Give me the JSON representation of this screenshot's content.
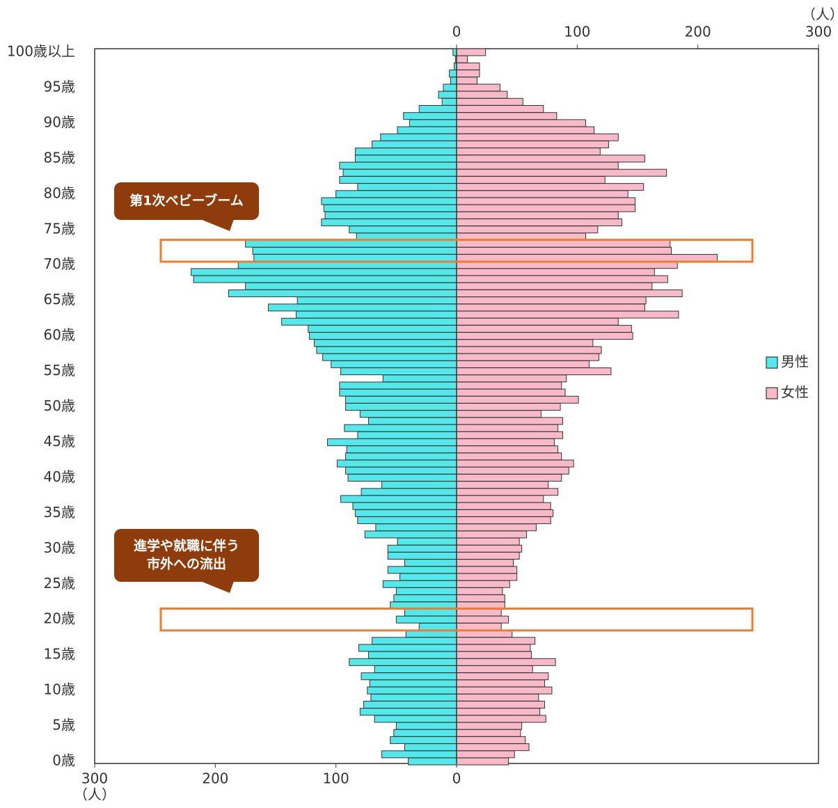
{
  "chart_data": {
    "type": "pyramid",
    "categories": [
      "0歳",
      null,
      null,
      null,
      null,
      "5歳",
      null,
      null,
      null,
      null,
      "10歳",
      null,
      null,
      null,
      null,
      "15歳",
      null,
      null,
      null,
      null,
      "20歳",
      null,
      null,
      null,
      null,
      "25歳",
      null,
      null,
      null,
      null,
      "30歳",
      null,
      null,
      null,
      null,
      "35歳",
      null,
      null,
      null,
      null,
      "40歳",
      null,
      null,
      null,
      null,
      "45歳",
      null,
      null,
      null,
      null,
      "50歳",
      null,
      null,
      null,
      null,
      "55歳",
      null,
      null,
      null,
      null,
      "60歳",
      null,
      null,
      null,
      null,
      "65歳",
      null,
      null,
      null,
      null,
      "70歳",
      null,
      null,
      null,
      null,
      "75歳",
      null,
      null,
      null,
      null,
      "80歳",
      null,
      null,
      null,
      null,
      "85歳",
      null,
      null,
      null,
      null,
      "90歳",
      null,
      null,
      null,
      null,
      "95歳",
      null,
      null,
      null,
      null,
      "100歳以上"
    ],
    "series": [
      {
        "name": "男性",
        "color": "#55e8ea",
        "side": "left",
        "values": [
          40,
          62,
          43,
          55,
          52,
          50,
          68,
          80,
          77,
          71,
          74,
          72,
          79,
          68,
          89,
          73,
          81,
          70,
          42,
          31,
          50,
          43,
          55,
          52,
          50,
          61,
          47,
          57,
          43,
          57,
          57,
          49,
          76,
          67,
          82,
          84,
          86,
          96,
          79,
          62,
          90,
          92,
          99,
          92,
          91,
          107,
          82,
          93,
          73,
          80,
          92,
          92,
          97,
          97,
          61,
          96,
          104,
          111,
          116,
          118,
          122,
          123,
          145,
          133,
          156,
          132,
          189,
          175,
          218,
          220,
          181,
          168,
          169,
          175,
          83,
          89,
          112,
          109,
          110,
          112,
          100,
          82,
          97,
          94,
          97,
          84,
          84,
          70,
          63,
          49,
          39,
          44,
          31,
          12,
          15,
          11,
          5,
          6,
          2,
          1,
          3
        ]
      },
      {
        "name": "女性",
        "color": "#f8b9c9",
        "side": "right",
        "values": [
          43,
          48,
          60,
          57,
          53,
          54,
          74,
          69,
          73,
          68,
          79,
          73,
          76,
          63,
          82,
          62,
          61,
          65,
          46,
          37,
          43,
          37,
          40,
          40,
          38,
          44,
          50,
          50,
          47,
          52,
          54,
          52,
          58,
          66,
          78,
          80,
          78,
          72,
          84,
          76,
          87,
          93,
          97,
          87,
          84,
          81,
          88,
          84,
          88,
          70,
          86,
          101,
          90,
          87,
          91,
          128,
          110,
          118,
          120,
          113,
          146,
          145,
          134,
          184,
          156,
          157,
          187,
          162,
          175,
          164,
          183,
          216,
          178,
          177,
          107,
          117,
          137,
          134,
          148,
          148,
          142,
          155,
          123,
          174,
          134,
          156,
          119,
          126,
          134,
          114,
          107,
          83,
          72,
          55,
          42,
          36,
          17,
          19,
          19,
          9,
          24
        ]
      }
    ],
    "xlim": [
      0,
      300
    ],
    "female_xticks": [
      0,
      100,
      200,
      300
    ],
    "male_xticks": [
      300,
      200,
      100,
      0
    ],
    "x_unit": "（人）",
    "annotations": [
      {
        "lines": [
          "第1次ベビーブーム"
        ],
        "ages": [
          71,
          73
        ]
      },
      {
        "lines": [
          "進学や就職に伴う",
          "市外への流出"
        ],
        "ages": [
          19,
          21
        ]
      }
    ]
  }
}
